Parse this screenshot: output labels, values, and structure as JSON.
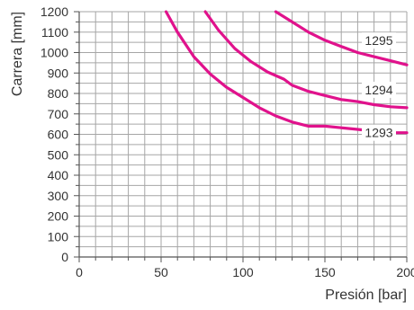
{
  "chart_data": {
    "type": "line",
    "title": "",
    "xlabel": "Presión [bar]",
    "ylabel": "Carrera [mm]",
    "xlim": [
      0,
      200
    ],
    "ylim": [
      0,
      1200
    ],
    "x_ticks": [
      "0",
      "50",
      "100",
      "150",
      "200"
    ],
    "y_ticks": [
      "0",
      "100",
      "200",
      "300",
      "400",
      "500",
      "600",
      "700",
      "800",
      "900",
      "1000",
      "1100",
      "1200"
    ],
    "grid": true,
    "line_color": "#e0128c",
    "series": [
      {
        "name": "1293",
        "x": [
          53,
          60,
          70,
          80,
          90,
          100,
          110,
          120,
          130,
          140,
          150,
          160,
          170,
          180,
          190,
          200
        ],
        "y": [
          1200,
          1100,
          980,
          895,
          830,
          780,
          730,
          690,
          660,
          640,
          640,
          632,
          624,
          616,
          608,
          608
        ]
      },
      {
        "name": "1294",
        "x": [
          77,
          85,
          95,
          105,
          115,
          125,
          130,
          140,
          150,
          160,
          170,
          180,
          190,
          200
        ],
        "y": [
          1200,
          1110,
          1020,
          955,
          905,
          870,
          840,
          810,
          790,
          770,
          760,
          745,
          735,
          730
        ]
      },
      {
        "name": "1295",
        "x": [
          120,
          130,
          140,
          150,
          160,
          170,
          180,
          190,
          200
        ],
        "y": [
          1200,
          1150,
          1100,
          1060,
          1030,
          1000,
          980,
          960,
          940
        ]
      }
    ]
  }
}
